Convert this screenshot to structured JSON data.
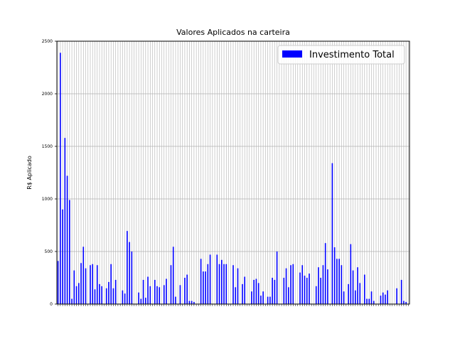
{
  "chart_data": {
    "type": "bar",
    "title": "Valores Aplicados na carteira",
    "xlabel": "",
    "ylabel": "R$ Aplicado",
    "ylim": [
      0,
      2500
    ],
    "yticks": [
      0,
      500,
      1000,
      1500,
      2000,
      2500
    ],
    "grid": true,
    "legend_position": "top-right",
    "series_color": "#0000ff",
    "series": [
      {
        "name": "Investimento Total",
        "values": [
          410,
          2390,
          900,
          1580,
          1220,
          990,
          50,
          320,
          170,
          200,
          390,
          545,
          340,
          0,
          370,
          380,
          140,
          370,
          190,
          170,
          0,
          150,
          210,
          380,
          150,
          230,
          0,
          0,
          130,
          100,
          695,
          590,
          500,
          0,
          0,
          110,
          50,
          230,
          60,
          260,
          170,
          0,
          230,
          170,
          160,
          0,
          180,
          240,
          0,
          370,
          545,
          70,
          0,
          180,
          0,
          250,
          280,
          30,
          30,
          20,
          0,
          0,
          430,
          310,
          310,
          380,
          470,
          0,
          0,
          470,
          380,
          420,
          380,
          380,
          0,
          0,
          370,
          160,
          340,
          0,
          190,
          260,
          0,
          0,
          120,
          230,
          240,
          200,
          80,
          120,
          0,
          70,
          70,
          250,
          230,
          500,
          0,
          0,
          250,
          340,
          160,
          370,
          380,
          0,
          0,
          300,
          370,
          270,
          250,
          290,
          0,
          0,
          170,
          350,
          250,
          370,
          580,
          330,
          0,
          1340,
          540,
          430,
          430,
          370,
          120,
          0,
          190,
          570,
          320,
          130,
          350,
          200,
          0,
          280,
          50,
          50,
          120,
          30,
          0,
          0,
          80,
          110,
          90,
          130,
          0,
          0,
          0,
          150,
          0,
          230,
          30,
          20,
          0
        ],
        "note_values_estimated": true
      }
    ]
  }
}
